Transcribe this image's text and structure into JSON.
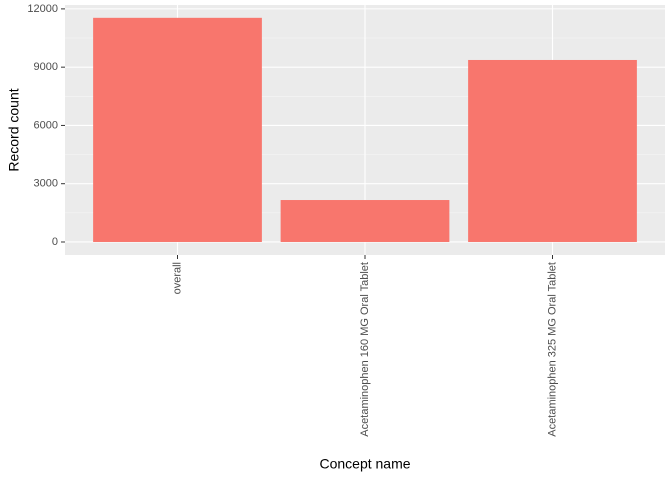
{
  "chart_data": {
    "type": "bar",
    "x_label": "Concept name",
    "y_label": "Record count",
    "categories": [
      "overall",
      "Acetaminophen 160 MG Oral Tablet",
      "Acetaminophen 325 MG Oral Tablet"
    ],
    "values": [
      11540,
      2160,
      9370
    ],
    "color": "#f8766d",
    "ylim": [
      -670,
      12200
    ],
    "yticks": [
      0,
      3000,
      6000,
      9000,
      12000
    ],
    "grid": true
  }
}
